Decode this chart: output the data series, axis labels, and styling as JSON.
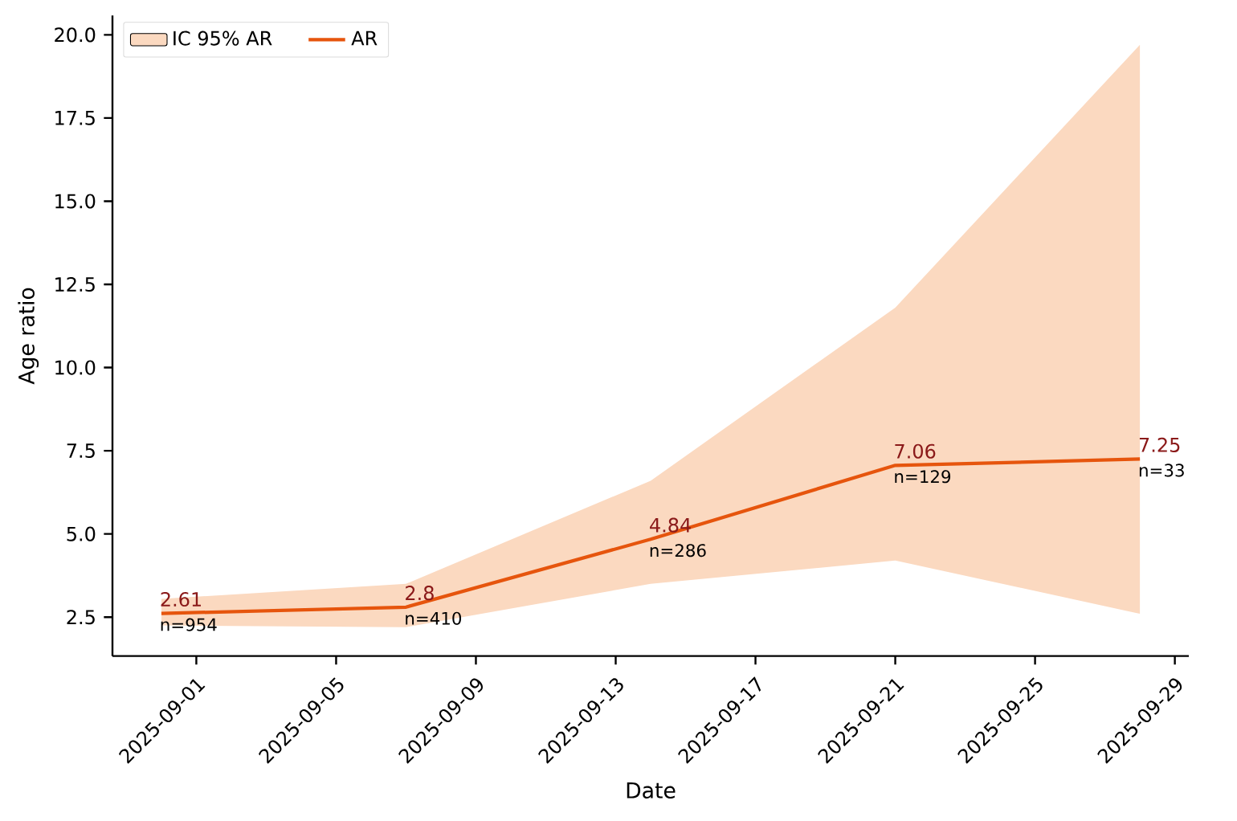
{
  "chart_data": {
    "type": "line",
    "xlabel": "Date",
    "ylabel": "Age ratio",
    "x": [
      "2025-08-31",
      "2025-09-07",
      "2025-09-14",
      "2025-09-21",
      "2025-09-28"
    ],
    "series": [
      {
        "name": "AR",
        "color": "#e6550d",
        "values": [
          2.61,
          2.8,
          4.84,
          7.06,
          7.25
        ],
        "value_labels": [
          "2.61",
          "2.8",
          "4.84",
          "7.06",
          "7.25"
        ]
      },
      {
        "name": "IC 95% AR",
        "type": "area",
        "color": "#fbd9c0",
        "values": [
          null,
          null,
          null,
          null,
          null
        ],
        "lower": [
          2.25,
          2.2,
          3.5,
          4.2,
          2.6
        ],
        "upper": [
          3.05,
          3.5,
          6.6,
          11.8,
          19.7
        ]
      }
    ],
    "annotations": [
      {
        "text": "n=954",
        "x": "2025-08-31",
        "y": 2.61
      },
      {
        "text": "n=410",
        "x": "2025-09-07",
        "y": 2.8
      },
      {
        "text": "n=286",
        "x": "2025-09-14",
        "y": 4.84
      },
      {
        "text": "n=129",
        "x": "2025-09-21",
        "y": 7.06
      },
      {
        "text": "n=33",
        "x": "2025-09-28",
        "y": 7.25
      }
    ],
    "xlim": [
      "2025-08-29T14:24",
      "2025-09-29T09:36"
    ],
    "xticks": [
      "2025-09-01",
      "2025-09-05",
      "2025-09-09",
      "2025-09-13",
      "2025-09-17",
      "2025-09-21",
      "2025-09-25",
      "2025-09-29"
    ],
    "ylim": [
      1.33,
      20.58
    ],
    "yticks": [
      2.5,
      {
        "value": 5,
        "label": "5.0"
      },
      7.5,
      {
        "value": 10,
        "label": "10.0"
      },
      12.5,
      {
        "value": 15,
        "label": "15.0"
      },
      17.5,
      {
        "value": 20,
        "label": "20.0"
      }
    ],
    "legend": "top left",
    "grid": false,
    "marker": "none",
    "line_style": "solid"
  }
}
